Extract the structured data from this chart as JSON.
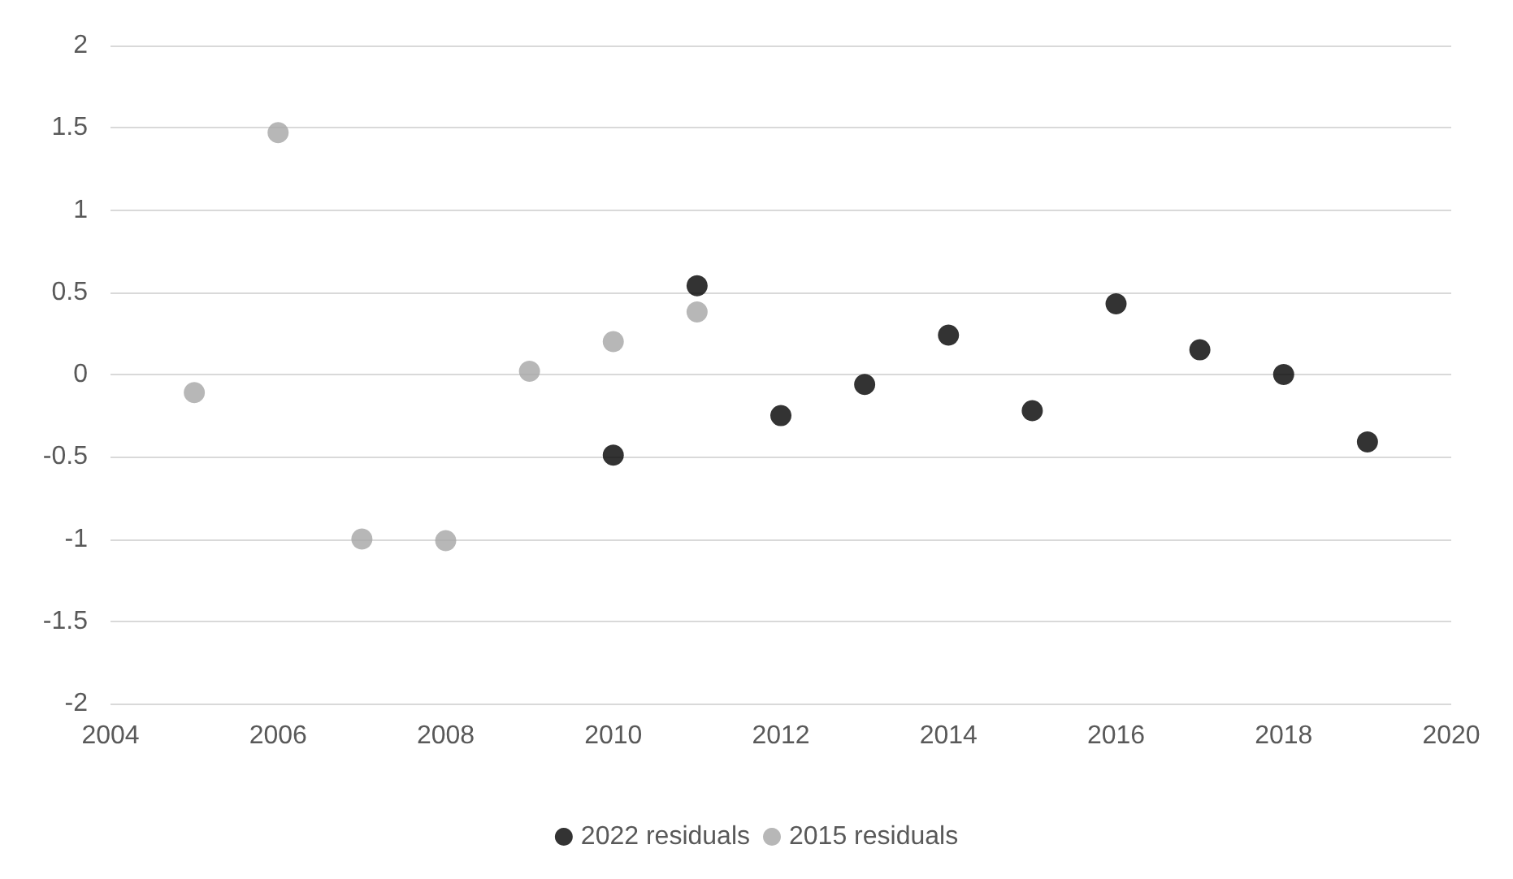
{
  "chart_data": {
    "type": "scatter",
    "series": [
      {
        "name": "2022 residuals",
        "color": "#000000",
        "x": [
          2010,
          2011,
          2012,
          2013,
          2014,
          2015,
          2016,
          2017,
          2018,
          2019
        ],
        "values": [
          -0.49,
          0.54,
          -0.25,
          -0.06,
          0.24,
          -0.22,
          0.43,
          0.15,
          0.0,
          -0.41
        ]
      },
      {
        "name": "2015 residuals",
        "color": "#a5a5a5",
        "x": [
          2005,
          2006,
          2007,
          2008,
          2009,
          2010,
          2011
        ],
        "values": [
          -0.11,
          1.47,
          -1.0,
          -1.01,
          0.02,
          0.2,
          0.38
        ]
      }
    ],
    "xlim": [
      2004,
      2020
    ],
    "xticks": [
      2004,
      2006,
      2008,
      2010,
      2012,
      2014,
      2016,
      2018,
      2020
    ],
    "ylim": [
      -2,
      2
    ],
    "yticks": [
      -2,
      -1.5,
      -1,
      -0.5,
      0,
      0.5,
      1,
      1.5,
      2
    ],
    "grid": "y",
    "legend": "bottom",
    "marker": "circle"
  }
}
